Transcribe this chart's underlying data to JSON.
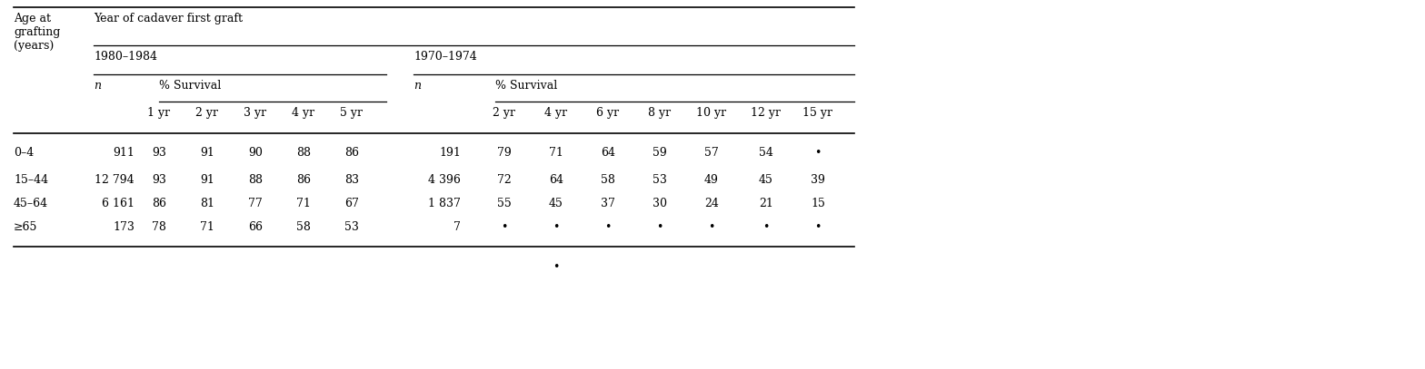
{
  "period1": "1980–1984",
  "period2": "1970–1974",
  "years1": [
    "1 yr",
    "2 yr",
    "3 yr",
    "4 yr",
    "5 yr"
  ],
  "years2": [
    "2 yr",
    "4 yr",
    "6 yr",
    "8 yr",
    "10 yr",
    "12 yr",
    "15 yr"
  ],
  "age_groups": [
    "0–4",
    "15–44",
    "45–64",
    "≥65"
  ],
  "n1": [
    "911",
    "12 794",
    "6 161",
    "173"
  ],
  "survival1": [
    [
      "93",
      "91",
      "90",
      "88",
      "86"
    ],
    [
      "93",
      "91",
      "88",
      "86",
      "83"
    ],
    [
      "86",
      "81",
      "77",
      "71",
      "67"
    ],
    [
      "78",
      "71",
      "66",
      "58",
      "53"
    ]
  ],
  "n2": [
    "191",
    "4 396",
    "1 837",
    "7"
  ],
  "survival2": [
    [
      "79",
      "71",
      "64",
      "59",
      "57",
      "54",
      "•"
    ],
    [
      "72",
      "64",
      "58",
      "53",
      "49",
      "45",
      "39"
    ],
    [
      "55",
      "45",
      "37",
      "30",
      "24",
      "21",
      "15"
    ],
    [
      "•",
      "•",
      "•",
      "•",
      "•",
      "•",
      "•"
    ]
  ],
  "extra_dot_col": 1,
  "bg_color": "#ffffff",
  "text_color": "#000000",
  "font_size": 9.0
}
